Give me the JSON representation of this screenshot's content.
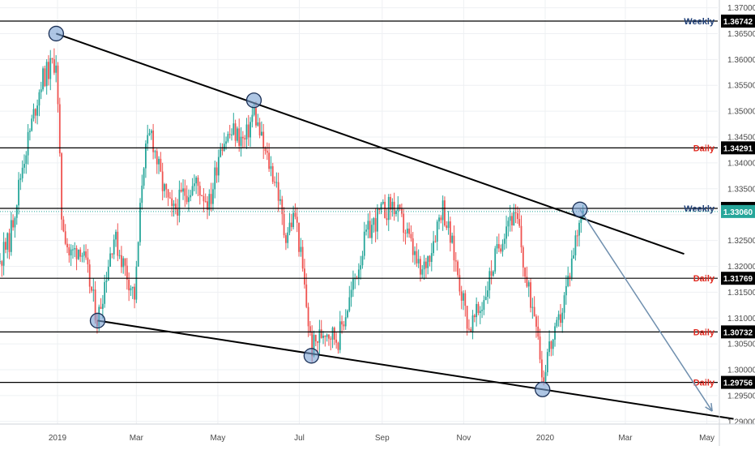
{
  "chart_data": {
    "type": "candlestick",
    "title": "",
    "xlabel": "",
    "ylabel": "",
    "ylim": [
      1.2895,
      1.3715
    ],
    "grid": true,
    "x_ticks": [
      "2019",
      "Mar",
      "May",
      "Jul",
      "Sep",
      "Nov",
      "2020",
      "Mar",
      "May"
    ],
    "y_ticks": [
      "1.37000",
      "1.36500",
      "1.36000",
      "1.35500",
      "1.35000",
      "1.34500",
      "1.34000",
      "1.33500",
      "1.33000",
      "1.32500",
      "1.32000",
      "1.31500",
      "1.31000",
      "1.30500",
      "1.30000",
      "1.29500",
      "1.29000"
    ],
    "last_price": "1.33060",
    "levels": [
      {
        "label": "Weekly",
        "value": "1.36742",
        "color": "#1f3f77"
      },
      {
        "label": "Daily",
        "value": "1.34291",
        "color": "#e0281e"
      },
      {
        "label": "Weekly",
        "value": "1.33120",
        "color": "#1f3f77"
      },
      {
        "label": "Daily",
        "value": "1.31769",
        "color": "#e0281e"
      },
      {
        "label": "Daily",
        "value": "1.30732",
        "color": "#e0281e"
      },
      {
        "label": "Daily",
        "value": "1.29756",
        "color": "#e0281e"
      }
    ],
    "trendlines": [
      {
        "from": {
          "date": "2018-12-31",
          "price": 1.365
        },
        "to": {
          "date": "2020-04-14",
          "price": 1.3224
        }
      },
      {
        "from": {
          "date": "2019-01-31",
          "price": 1.3095
        },
        "to": {
          "date": "2020-05-21",
          "price": 1.2905
        }
      }
    ],
    "touch_points": [
      {
        "date": "2018-12-31",
        "price": 1.365
      },
      {
        "date": "2019-05-28",
        "price": 1.3521
      },
      {
        "date": "2019-01-31",
        "price": 1.3095
      },
      {
        "date": "2019-07-10",
        "price": 1.3027
      },
      {
        "date": "2019-12-30",
        "price": 1.2962
      },
      {
        "date": "2020-01-27",
        "price": 1.331
      }
    ],
    "projection": {
      "from": {
        "date": "2020-01-27",
        "price": 1.331
      },
      "to": {
        "date": "2020-05-05",
        "price": 1.292
      }
    },
    "price_path": [
      {
        "date": "2018-10-01",
        "price": 1.314
      },
      {
        "date": "2018-10-15",
        "price": 1.328
      },
      {
        "date": "2018-10-29",
        "price": 1.322
      },
      {
        "date": "2018-11-12",
        "price": 1.318
      },
      {
        "date": "2018-11-26",
        "price": 1.325
      },
      {
        "date": "2018-12-06",
        "price": 1.34
      },
      {
        "date": "2018-12-20",
        "price": 1.356
      },
      {
        "date": "2018-12-31",
        "price": 1.36
      },
      {
        "date": "2019-01-04",
        "price": 1.33
      },
      {
        "date": "2019-01-10",
        "price": 1.322
      },
      {
        "date": "2019-01-18",
        "price": 1.324
      },
      {
        "date": "2019-01-24",
        "price": 1.318
      },
      {
        "date": "2019-01-31",
        "price": 1.3095
      },
      {
        "date": "2019-02-06",
        "price": 1.318
      },
      {
        "date": "2019-02-12",
        "price": 1.326
      },
      {
        "date": "2019-02-20",
        "price": 1.32
      },
      {
        "date": "2019-02-28",
        "price": 1.314
      },
      {
        "date": "2019-03-06",
        "price": 1.34
      },
      {
        "date": "2019-03-12",
        "price": 1.346
      },
      {
        "date": "2019-03-20",
        "price": 1.336
      },
      {
        "date": "2019-03-28",
        "price": 1.33
      },
      {
        "date": "2019-04-05",
        "price": 1.334
      },
      {
        "date": "2019-04-15",
        "price": 1.336
      },
      {
        "date": "2019-04-25",
        "price": 1.332
      },
      {
        "date": "2019-05-03",
        "price": 1.344
      },
      {
        "date": "2019-05-13",
        "price": 1.346
      },
      {
        "date": "2019-05-21",
        "price": 1.344
      },
      {
        "date": "2019-05-28",
        "price": 1.35
      },
      {
        "date": "2019-06-05",
        "price": 1.342
      },
      {
        "date": "2019-06-14",
        "price": 1.336
      },
      {
        "date": "2019-06-20",
        "price": 1.326
      },
      {
        "date": "2019-06-28",
        "price": 1.33
      },
      {
        "date": "2019-07-03",
        "price": 1.32
      },
      {
        "date": "2019-07-10",
        "price": 1.304
      },
      {
        "date": "2019-07-20",
        "price": 1.308
      },
      {
        "date": "2019-07-30",
        "price": 1.306
      },
      {
        "date": "2019-08-08",
        "price": 1.314
      },
      {
        "date": "2019-08-20",
        "price": 1.326
      },
      {
        "date": "2019-08-30",
        "price": 1.33
      },
      {
        "date": "2019-09-09",
        "price": 1.332
      },
      {
        "date": "2019-09-20",
        "price": 1.326
      },
      {
        "date": "2019-09-30",
        "price": 1.318
      },
      {
        "date": "2019-10-08",
        "price": 1.324
      },
      {
        "date": "2019-10-16",
        "price": 1.332
      },
      {
        "date": "2019-10-25",
        "price": 1.322
      },
      {
        "date": "2019-11-05",
        "price": 1.308
      },
      {
        "date": "2019-11-14",
        "price": 1.312
      },
      {
        "date": "2019-11-25",
        "price": 1.322
      },
      {
        "date": "2019-12-05",
        "price": 1.33
      },
      {
        "date": "2019-12-12",
        "price": 1.328
      },
      {
        "date": "2019-12-18",
        "price": 1.316
      },
      {
        "date": "2019-12-26",
        "price": 1.31
      },
      {
        "date": "2019-12-30",
        "price": 1.2975
      },
      {
        "date": "2020-01-03",
        "price": 1.304
      },
      {
        "date": "2020-01-08",
        "price": 1.306
      },
      {
        "date": "2020-01-14",
        "price": 1.312
      },
      {
        "date": "2020-01-20",
        "price": 1.32
      },
      {
        "date": "2020-01-27",
        "price": 1.33
      },
      {
        "date": "2020-01-30",
        "price": 1.329
      }
    ]
  }
}
